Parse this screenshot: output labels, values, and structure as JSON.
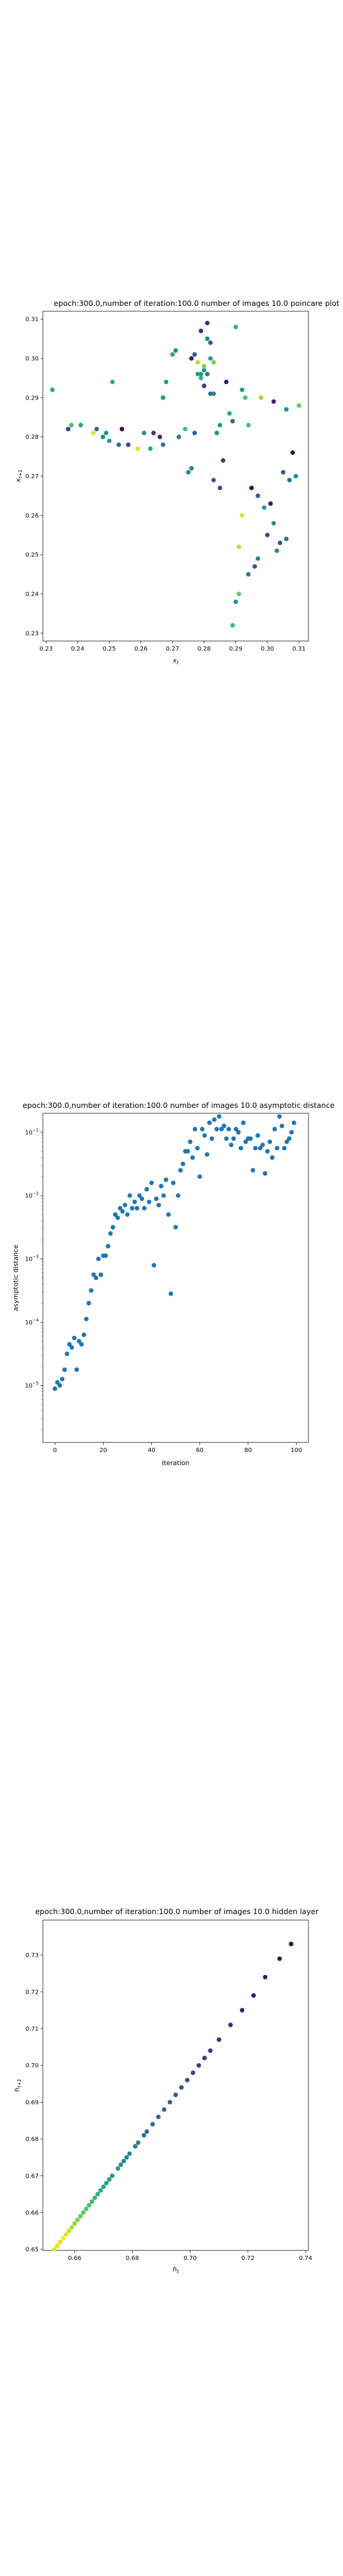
{
  "chart_data": [
    {
      "type": "scatter",
      "title": "epoch:300.0,number of iteration:100.0  number of images 10.0 poincare plot",
      "xlabel": "x_t",
      "ylabel": "x_{t+1}",
      "xlim": [
        0.229,
        0.313
      ],
      "ylim": [
        0.228,
        0.312
      ],
      "xticks": [
        0.23,
        0.24,
        0.25,
        0.26,
        0.27,
        0.28,
        0.29,
        0.3,
        0.31
      ],
      "xtick_labels": [
        "0.23",
        "0.24",
        "0.25",
        "0.26",
        "0.27",
        "0.28",
        "0.29",
        "0.30",
        "0.31"
      ],
      "yticks": [
        0.23,
        0.24,
        0.25,
        0.26,
        0.27,
        0.28,
        0.29,
        0.3,
        0.31
      ],
      "ytick_labels": [
        "0.23",
        "0.24",
        "0.25",
        "0.26",
        "0.27",
        "0.28",
        "0.29",
        "0.30",
        "0.31"
      ],
      "x": [
        0.232,
        0.237,
        0.238,
        0.241,
        0.245,
        0.246,
        0.248,
        0.25,
        0.251,
        0.253,
        0.254,
        0.256,
        0.259,
        0.261,
        0.264,
        0.266,
        0.267,
        0.268,
        0.27,
        0.271,
        0.272,
        0.274,
        0.275,
        0.276,
        0.277,
        0.277,
        0.278,
        0.278,
        0.279,
        0.279,
        0.28,
        0.28,
        0.281,
        0.281,
        0.282,
        0.282,
        0.283,
        0.283,
        0.284,
        0.285,
        0.286,
        0.287,
        0.288,
        0.289,
        0.29,
        0.291,
        0.291,
        0.292,
        0.293,
        0.294,
        0.295,
        0.296,
        0.297,
        0.298,
        0.299,
        0.3,
        0.301,
        0.302,
        0.303,
        0.304,
        0.306,
        0.307,
        0.308,
        0.309,
        0.31,
        0.237,
        0.249,
        0.263,
        0.281,
        0.282,
        0.276,
        0.298,
        0.29,
        0.285,
        0.297,
        0.302,
        0.306,
        0.292,
        0.294,
        0.289,
        0.267,
        0.28,
        0.279,
        0.283,
        0.305
      ],
      "y": [
        0.292,
        0.282,
        0.283,
        0.283,
        0.281,
        0.282,
        0.28,
        0.279,
        0.294,
        0.278,
        0.282,
        0.278,
        0.277,
        0.281,
        0.281,
        0.28,
        0.29,
        0.294,
        0.301,
        0.302,
        0.28,
        0.282,
        0.271,
        0.3,
        0.301,
        0.281,
        0.299,
        0.296,
        0.307,
        0.295,
        0.297,
        0.293,
        0.309,
        0.305,
        0.3,
        0.291,
        0.269,
        0.299,
        0.281,
        0.267,
        0.274,
        0.294,
        0.286,
        0.232,
        0.238,
        0.24,
        0.252,
        0.26,
        0.29,
        0.245,
        0.267,
        0.247,
        0.249,
        0.29,
        0.262,
        0.255,
        0.263,
        0.258,
        0.251,
        0.253,
        0.254,
        0.269,
        0.276,
        0.27,
        0.288,
        0.282,
        0.281,
        0.277,
        0.296,
        0.304,
        0.272,
        0.29,
        0.308,
        0.283,
        0.265,
        0.289,
        0.287,
        0.292,
        0.283,
        0.284,
        0.278,
        0.298,
        0.296,
        0.291,
        0.271
      ],
      "color_values": [
        0.6,
        0.4,
        0.7,
        0.6,
        0.95,
        0.3,
        0.5,
        0.55,
        0.6,
        0.35,
        0.0,
        0.2,
        0.95,
        0.5,
        0.15,
        0.1,
        0.5,
        0.55,
        0.6,
        0.5,
        0.4,
        0.7,
        0.45,
        0.05,
        0.25,
        0.3,
        0.9,
        0.55,
        0.1,
        0.65,
        0.5,
        0.15,
        0.1,
        0.45,
        0.55,
        0.35,
        0.3,
        0.8,
        0.5,
        0.2,
        0.15,
        0.05,
        0.6,
        0.7,
        0.5,
        0.75,
        0.9,
        0.95,
        0.7,
        0.4,
        0.0,
        0.3,
        0.45,
        0.95,
        0.55,
        0.2,
        0.05,
        0.5,
        0.5,
        0.25,
        0.4,
        0.35,
        0.0,
        0.45,
        0.75,
        0.2,
        0.5,
        0.6,
        0.4,
        0.3,
        0.45,
        0.85,
        0.65,
        0.55,
        0.3,
        0.1,
        0.5,
        0.55,
        0.7,
        0.35,
        0.4,
        0.8,
        0.55,
        0.45,
        0.3
      ]
    },
    {
      "type": "scatter",
      "title": "epoch:300.0,number of iteration:100.0  number of images 10.0 asymptotic distance",
      "xlabel": "iteration",
      "ylabel": "asymptotic distance",
      "yscale": "log",
      "xlim": [
        -5,
        105
      ],
      "ylim_exp": [
        -5.9,
        -0.7
      ],
      "xticks": [
        0,
        20,
        40,
        60,
        80,
        100
      ],
      "xtick_labels": [
        "0",
        "20",
        "40",
        "60",
        "80",
        "100"
      ],
      "yticks_exp": [
        -5,
        -4,
        -3,
        -2,
        -1
      ],
      "ytick_mantissa": "10",
      "ytick_exponents": [
        "−5",
        "−4",
        "−3",
        "−2",
        "−1"
      ],
      "color": "#1f77b4",
      "x": [
        0,
        1,
        2,
        3,
        4,
        5,
        6,
        7,
        8,
        9,
        10,
        11,
        12,
        13,
        14,
        15,
        16,
        17,
        18,
        19,
        20,
        21,
        22,
        23,
        24,
        25,
        26,
        27,
        28,
        29,
        30,
        31,
        32,
        33,
        34,
        35,
        36,
        37,
        38,
        39,
        40,
        41,
        42,
        43,
        44,
        45,
        46,
        47,
        48,
        49,
        50,
        51,
        52,
        53,
        54,
        55,
        56,
        57,
        58,
        59,
        60,
        61,
        62,
        63,
        64,
        65,
        66,
        67,
        68,
        69,
        70,
        71,
        72,
        73,
        74,
        75,
        76,
        77,
        78,
        79,
        80,
        81,
        82,
        83,
        84,
        85,
        86,
        87,
        88,
        89,
        90,
        91,
        92,
        93,
        94,
        95,
        96,
        97,
        98,
        99
      ],
      "y_log10": [
        -5.05,
        -4.95,
        -5.0,
        -4.9,
        -4.75,
        -4.5,
        -4.35,
        -4.4,
        -4.25,
        -4.75,
        -4.3,
        -4.35,
        -4.2,
        -3.95,
        -3.7,
        -3.5,
        -3.25,
        -3.3,
        -3.0,
        -3.25,
        -2.95,
        -2.95,
        -2.8,
        -2.6,
        -2.5,
        -2.3,
        -2.35,
        -2.2,
        -2.25,
        -2.15,
        -2.3,
        -2.0,
        -2.2,
        -2.1,
        -2.2,
        -2.0,
        -2.05,
        -2.2,
        -1.9,
        -2.1,
        -1.8,
        -3.1,
        -2.05,
        -2.15,
        -1.85,
        -2.0,
        -1.75,
        -2.3,
        -3.55,
        -1.8,
        -2.5,
        -2.0,
        -1.6,
        -1.5,
        -1.3,
        -1.3,
        -1.15,
        -1.4,
        -0.95,
        -1.25,
        -1.7,
        -0.95,
        -1.05,
        -1.35,
        -0.85,
        -1.1,
        -0.8,
        -0.95,
        -0.75,
        -0.95,
        -0.9,
        -1.1,
        -0.95,
        -1.2,
        -1.1,
        -0.95,
        -1.0,
        -1.25,
        -0.85,
        -1.15,
        -1.1,
        -1.1,
        -1.6,
        -1.25,
        -1.05,
        -1.25,
        -1.2,
        -1.65,
        -1.3,
        -1.15,
        -1.4,
        -0.95,
        -1.25,
        -0.75,
        -0.9,
        -1.25,
        -1.15,
        -1.1,
        -1.0,
        -0.85
      ]
    },
    {
      "type": "scatter",
      "title": "epoch:300.0,number of iteration:100.0  number of images 10.0 hidden layer",
      "xlabel": "h_t",
      "ylabel": "h_{t+1}",
      "xlim": [
        0.649,
        0.741
      ],
      "ylim": [
        0.6497,
        0.7395
      ],
      "xticks": [
        0.66,
        0.68,
        0.7,
        0.72,
        0.74
      ],
      "xtick_labels": [
        "0.66",
        "0.68",
        "0.70",
        "0.72",
        "0.74"
      ],
      "yticks": [
        0.65,
        0.66,
        0.67,
        0.68,
        0.69,
        0.7,
        0.71,
        0.72,
        0.73
      ],
      "ytick_labels": [
        "0.65",
        "0.66",
        "0.67",
        "0.68",
        "0.69",
        "0.70",
        "0.71",
        "0.72",
        "0.73"
      ],
      "x": [
        0.735,
        0.731,
        0.726,
        0.722,
        0.718,
        0.714,
        0.71,
        0.707,
        0.705,
        0.703,
        0.701,
        0.699,
        0.697,
        0.695,
        0.693,
        0.691,
        0.689,
        0.687,
        0.685,
        0.684,
        0.682,
        0.681,
        0.679,
        0.678,
        0.677,
        0.676,
        0.675,
        0.673,
        0.672,
        0.671,
        0.67,
        0.669,
        0.668,
        0.667,
        0.666,
        0.665,
        0.664,
        0.663,
        0.662,
        0.662,
        0.661,
        0.66,
        0.66,
        0.659,
        0.659,
        0.658,
        0.658,
        0.657,
        0.657,
        0.656,
        0.656,
        0.655,
        0.655,
        0.655,
        0.654,
        0.654,
        0.654,
        0.653,
        0.653,
        0.653
      ],
      "y": [
        0.733,
        0.729,
        0.724,
        0.719,
        0.715,
        0.711,
        0.707,
        0.704,
        0.702,
        0.7,
        0.698,
        0.696,
        0.694,
        0.692,
        0.69,
        0.688,
        0.686,
        0.684,
        0.682,
        0.681,
        0.679,
        0.678,
        0.676,
        0.675,
        0.674,
        0.673,
        0.672,
        0.67,
        0.669,
        0.668,
        0.667,
        0.666,
        0.665,
        0.664,
        0.663,
        0.662,
        0.661,
        0.66,
        0.659,
        0.659,
        0.658,
        0.657,
        0.657,
        0.656,
        0.656,
        0.655,
        0.655,
        0.654,
        0.654,
        0.653,
        0.653,
        0.652,
        0.652,
        0.652,
        0.651,
        0.651,
        0.651,
        0.65,
        0.65,
        0.65
      ],
      "color_values": [
        0.0,
        0.02,
        0.04,
        0.06,
        0.08,
        0.1,
        0.12,
        0.14,
        0.16,
        0.18,
        0.2,
        0.22,
        0.24,
        0.26,
        0.28,
        0.3,
        0.32,
        0.34,
        0.36,
        0.38,
        0.4,
        0.42,
        0.44,
        0.46,
        0.48,
        0.5,
        0.52,
        0.54,
        0.56,
        0.58,
        0.6,
        0.62,
        0.64,
        0.66,
        0.68,
        0.7,
        0.72,
        0.74,
        0.76,
        0.78,
        0.8,
        0.82,
        0.84,
        0.86,
        0.88,
        0.9,
        0.92,
        0.94,
        0.96,
        0.98,
        1.0,
        0.97,
        0.99,
        0.95,
        1.0,
        0.98,
        0.96,
        1.0,
        0.99,
        0.97
      ]
    }
  ]
}
